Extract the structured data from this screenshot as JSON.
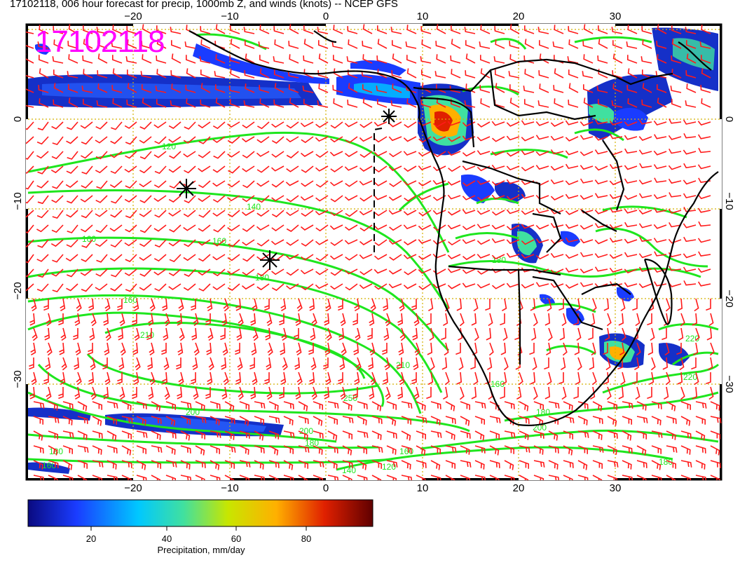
{
  "title": "17102118, 006 hour forecast for precip, 1000mb Z, and winds (knots) -- NCEP GFS",
  "stamp": "17102118",
  "axes": {
    "x_ticks": [
      "−20",
      "−10",
      "0",
      "10",
      "20",
      "30"
    ],
    "y_ticks_left": [
      "0",
      "−10",
      "−20",
      "−30"
    ],
    "y_ticks_right": [
      "0",
      "−10",
      "−20",
      "−30"
    ],
    "lon_range": [
      -30,
      42
    ],
    "lat_range": [
      -40,
      10
    ]
  },
  "colorbar": {
    "label": "Precipitation, mm/day",
    "ticks": [
      "20",
      "40",
      "60",
      "80"
    ],
    "range": [
      0,
      100
    ],
    "colors": [
      "#0a0a80",
      "#1a3cff",
      "#00c8ff",
      "#40e0a0",
      "#c8e600",
      "#ffb000",
      "#e02000",
      "#600000"
    ]
  },
  "contour_labels": [
    "120",
    "140",
    "160",
    "160",
    "180",
    "160",
    "210",
    "210",
    "200",
    "250",
    "180",
    "160",
    "180",
    "140",
    "120",
    "160",
    "180",
    "220",
    "180",
    "200",
    "220",
    "160",
    "180",
    "200"
  ],
  "wind_color": "#ff1a1a",
  "contour_color": "#1ee61e",
  "coast_color": "#000000",
  "grid_color": "#d4b000"
}
